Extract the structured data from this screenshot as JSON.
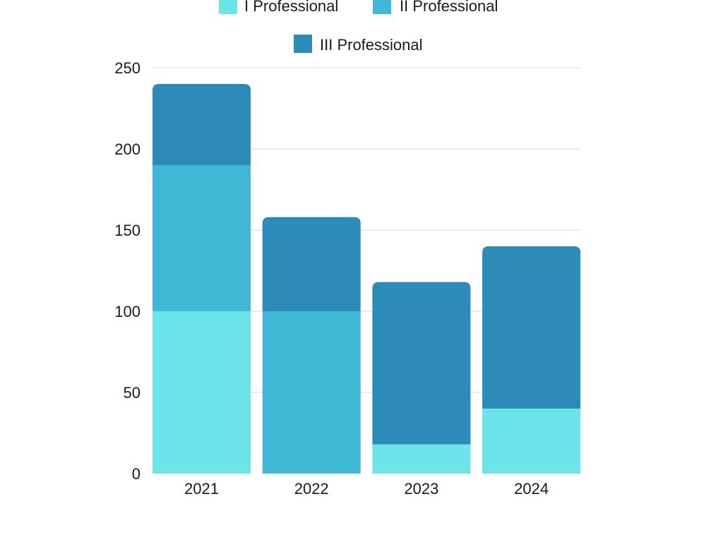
{
  "chart_data": {
    "type": "bar",
    "stacked": true,
    "title": "",
    "xlabel": "",
    "ylabel": "",
    "categories": [
      "2021",
      "2022",
      "2023",
      "2024"
    ],
    "ylim": [
      0,
      250
    ],
    "yticks": [
      0,
      50,
      100,
      150,
      200,
      250
    ],
    "grid": true,
    "legend_position": "top",
    "series": [
      {
        "name": "I Professional",
        "color": "#6ce5e8",
        "values": [
          100,
          0,
          18,
          40
        ]
      },
      {
        "name": "II Professional",
        "color": "#41b8d5",
        "values": [
          90,
          100,
          0,
          0
        ]
      },
      {
        "name": "III Professional",
        "color": "#2d8bba",
        "values": [
          50,
          58,
          100,
          100
        ]
      }
    ]
  }
}
